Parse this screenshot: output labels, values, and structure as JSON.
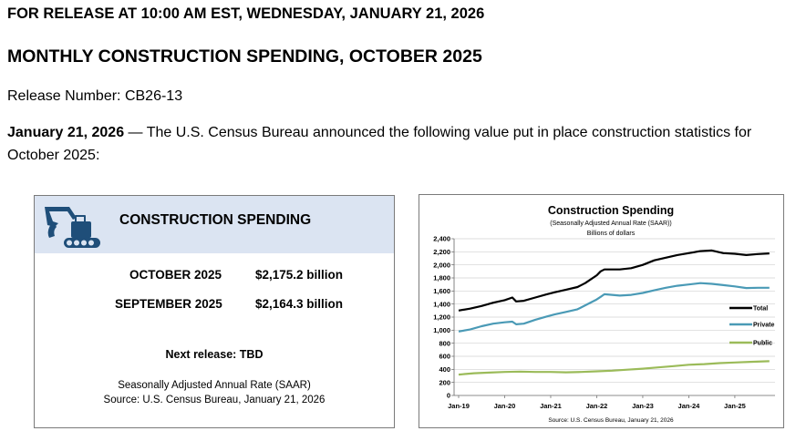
{
  "header": {
    "release_line": "FOR RELEASE AT 10:00 AM EST, WEDNESDAY, JANUARY 21, 2026",
    "title": "MONTHLY CONSTRUCTION SPENDING, OCTOBER 2025",
    "release_number": "Release Number: CB26-13",
    "announce_date": "January 21, 2026",
    "announce_text": " — The U.S. Census Bureau announced the following value put in place construction statistics for October 2025:"
  },
  "summary_card": {
    "icon": "excavator-icon",
    "title": "CONSTRUCTION SPENDING",
    "rows": [
      {
        "label": "OCTOBER 2025",
        "value": "$2,175.2 billion"
      },
      {
        "label": "SEPTEMBER 2025",
        "value": "$2,164.3 billion"
      }
    ],
    "next_release": "Next release: TBD",
    "footnote1": "Seasonally Adjusted Annual Rate (SAAR)",
    "footnote2": "Source: U.S. Census Bureau, January 21, 2026"
  },
  "colors": {
    "total": "#000000",
    "private": "#4a9ab6",
    "public": "#9bbb59",
    "icon": "#1f4e79",
    "card_header": "#dbe4f2"
  },
  "chart_data": {
    "type": "line",
    "title": "Construction Spending",
    "subtitle": "(Seasonally Adjusted Annual Rate (SAAR))",
    "ylabel": "Billions of dollars",
    "source": "Source: U.S. Census Bureau, January 21, 2026",
    "ylim": [
      0,
      2400
    ],
    "yticks": [
      0,
      200,
      400,
      600,
      800,
      1000,
      1200,
      1400,
      1600,
      1800,
      2000,
      2200,
      2400
    ],
    "ytick_labels": [
      "0",
      "200",
      "400",
      "600",
      "800",
      "1,000",
      "1,200",
      "1,400",
      "1,600",
      "1,800",
      "2,000",
      "2,200",
      "2,400"
    ],
    "xlim": [
      0,
      82
    ],
    "xticks": [
      {
        "month": 0,
        "label": "Jan-19"
      },
      {
        "month": 12,
        "label": "Jan-20"
      },
      {
        "month": 24,
        "label": "Jan-21"
      },
      {
        "month": 36,
        "label": "Jan-22"
      },
      {
        "month": 48,
        "label": "Jan-23"
      },
      {
        "month": 60,
        "label": "Jan-24"
      },
      {
        "month": 72,
        "label": "Jan-25"
      }
    ],
    "series": [
      {
        "name": "Total",
        "points": [
          [
            0,
            1300
          ],
          [
            3,
            1330
          ],
          [
            6,
            1370
          ],
          [
            9,
            1420
          ],
          [
            12,
            1460
          ],
          [
            14,
            1500
          ],
          [
            15,
            1440
          ],
          [
            17,
            1450
          ],
          [
            20,
            1500
          ],
          [
            23,
            1550
          ],
          [
            25,
            1580
          ],
          [
            28,
            1620
          ],
          [
            31,
            1660
          ],
          [
            33,
            1720
          ],
          [
            36,
            1840
          ],
          [
            37,
            1900
          ],
          [
            38,
            1930
          ],
          [
            42,
            1930
          ],
          [
            45,
            1950
          ],
          [
            48,
            2000
          ],
          [
            51,
            2070
          ],
          [
            54,
            2110
          ],
          [
            57,
            2150
          ],
          [
            60,
            2180
          ],
          [
            63,
            2210
          ],
          [
            66,
            2220
          ],
          [
            69,
            2180
          ],
          [
            72,
            2170
          ],
          [
            75,
            2150
          ],
          [
            78,
            2165
          ],
          [
            81,
            2175
          ]
        ]
      },
      {
        "name": "Private",
        "points": [
          [
            0,
            980
          ],
          [
            3,
            1010
          ],
          [
            6,
            1060
          ],
          [
            9,
            1100
          ],
          [
            12,
            1120
          ],
          [
            14,
            1130
          ],
          [
            15,
            1090
          ],
          [
            17,
            1100
          ],
          [
            20,
            1160
          ],
          [
            23,
            1210
          ],
          [
            25,
            1240
          ],
          [
            28,
            1280
          ],
          [
            31,
            1320
          ],
          [
            33,
            1380
          ],
          [
            36,
            1470
          ],
          [
            37,
            1510
          ],
          [
            38,
            1550
          ],
          [
            42,
            1530
          ],
          [
            45,
            1540
          ],
          [
            48,
            1570
          ],
          [
            51,
            1610
          ],
          [
            54,
            1650
          ],
          [
            57,
            1680
          ],
          [
            60,
            1700
          ],
          [
            63,
            1720
          ],
          [
            66,
            1710
          ],
          [
            69,
            1690
          ],
          [
            72,
            1670
          ],
          [
            75,
            1645
          ],
          [
            78,
            1650
          ],
          [
            81,
            1650
          ]
        ]
      },
      {
        "name": "Public",
        "points": [
          [
            0,
            320
          ],
          [
            4,
            340
          ],
          [
            8,
            350
          ],
          [
            12,
            360
          ],
          [
            16,
            365
          ],
          [
            20,
            360
          ],
          [
            24,
            360
          ],
          [
            28,
            355
          ],
          [
            32,
            360
          ],
          [
            36,
            370
          ],
          [
            40,
            380
          ],
          [
            44,
            395
          ],
          [
            48,
            410
          ],
          [
            52,
            430
          ],
          [
            56,
            450
          ],
          [
            60,
            470
          ],
          [
            64,
            480
          ],
          [
            68,
            495
          ],
          [
            72,
            505
          ],
          [
            76,
            515
          ],
          [
            81,
            525
          ]
        ]
      }
    ]
  }
}
